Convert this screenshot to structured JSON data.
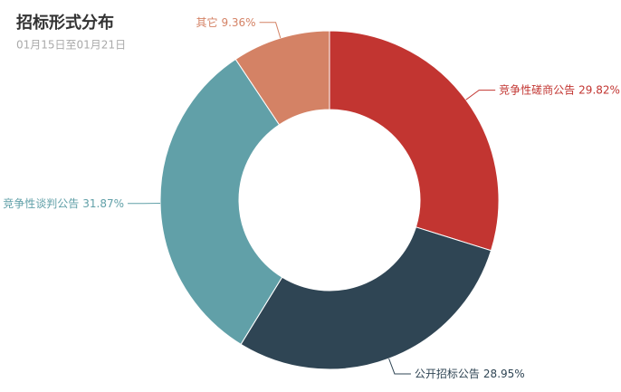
{
  "chart_data": {
    "type": "donut",
    "title": "招标形式分布",
    "subtitle": "01月15日至01月21日",
    "categories": [
      "竞争性磋商公告",
      "公开招标公告",
      "竞争性谈判公告",
      "其它"
    ],
    "values": [
      29.82,
      28.95,
      31.87,
      9.36
    ],
    "value_labels": [
      "29.82%",
      "28.95%",
      "31.87%",
      "9.36%"
    ],
    "colors": [
      "#c23531",
      "#2f4554",
      "#61a0a8",
      "#d48265"
    ]
  }
}
